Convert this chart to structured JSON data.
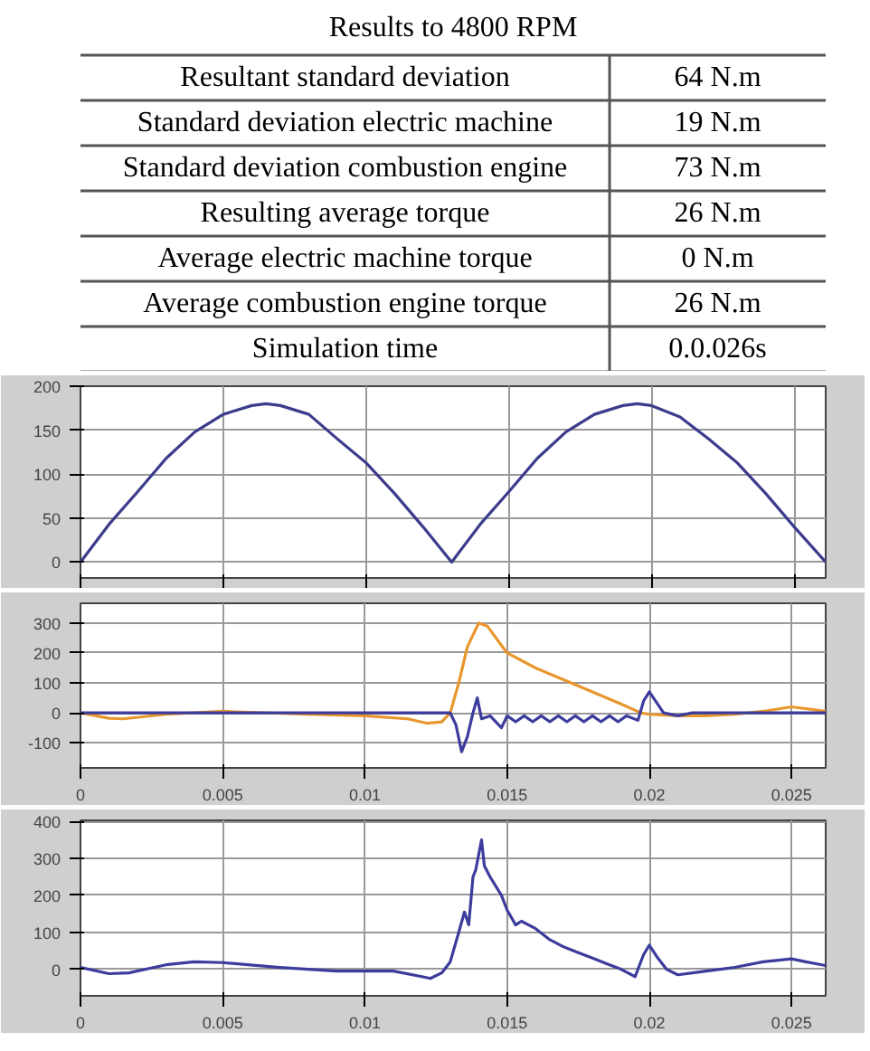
{
  "chart_data": [
    {
      "type": "other",
      "title": "Results to 4800 RPM",
      "annotations": [
        "Resultant standard deviation",
        "64 N.m",
        "Standard deviation electric machine",
        "19 N.m",
        "Standard deviation combustion engine",
        "73 N.m",
        "Resulting average torque",
        "26 N.m",
        "Average electric machine torque",
        "0 N.m",
        "Average combustion engine torque",
        "26 N.m",
        "Simulation time",
        "0.0.026s"
      ]
    },
    {
      "type": "line",
      "xlim": [
        0,
        0.0261
      ],
      "ylim": [
        -18,
        200
      ],
      "xticks": [
        0,
        0.005,
        0.01,
        0.015,
        0.02,
        0.025
      ],
      "yticks": [
        0,
        50,
        100,
        150,
        200
      ],
      "grid": true,
      "tick_labels": "y",
      "series": [
        {
          "color": "#3c3c8c",
          "x": [
            0,
            0.001,
            0.002,
            0.003,
            0.004,
            0.005,
            0.006,
            0.0065,
            0.007,
            0.008,
            0.009,
            0.01,
            0.011,
            0.012,
            0.013,
            0.014,
            0.015,
            0.016,
            0.017,
            0.018,
            0.019,
            0.0195,
            0.02,
            0.021,
            0.022,
            0.023,
            0.024,
            0.025,
            0.0261
          ],
          "values": [
            0,
            43,
            80,
            118,
            148,
            168,
            178,
            180,
            178,
            168,
            140,
            113,
            78,
            40,
            0,
            43,
            80,
            118,
            148,
            168,
            178,
            180,
            178,
            165,
            140,
            113,
            78,
            40,
            0
          ]
        }
      ]
    },
    {
      "type": "line",
      "xlim": [
        0,
        0.0262
      ],
      "ylim": [
        -184,
        366
      ],
      "xticks": [
        0,
        0.005,
        0.01,
        0.015,
        0.02,
        0.025
      ],
      "yticks": [
        -100,
        0,
        100,
        200,
        300
      ],
      "grid": true,
      "series": [
        {
          "color": "#e8962e",
          "x": [
            0,
            0.001,
            0.0015,
            0.003,
            0.005,
            0.008,
            0.01,
            0.0115,
            0.0122,
            0.0127,
            0.013,
            0.0133,
            0.0136,
            0.014,
            0.0143,
            0.015,
            0.016,
            0.017,
            0.018,
            0.019,
            0.0197,
            0.02,
            0.021,
            0.022,
            0.023,
            0.024,
            0.025,
            0.0262
          ],
          "values": [
            0,
            -18,
            -20,
            -5,
            5,
            -5,
            -10,
            -20,
            -35,
            -30,
            0,
            100,
            220,
            300,
            290,
            200,
            150,
            110,
            70,
            30,
            0,
            -5,
            -10,
            -10,
            -5,
            5,
            20,
            5
          ]
        },
        {
          "color": "#3c3c9c",
          "x": [
            0,
            0.013,
            0.0132,
            0.0134,
            0.0136,
            0.0138,
            0.01395,
            0.0141,
            0.0144,
            0.0148,
            0.015,
            0.0153,
            0.0156,
            0.0159,
            0.0162,
            0.0165,
            0.0168,
            0.0171,
            0.0174,
            0.0177,
            0.018,
            0.0183,
            0.0186,
            0.0189,
            0.0192,
            0.0196,
            0.0198,
            0.02,
            0.0205,
            0.021,
            0.0215,
            0.0262
          ],
          "values": [
            0,
            0,
            -40,
            -130,
            -80,
            0,
            50,
            -20,
            -10,
            -50,
            -10,
            -30,
            -10,
            -30,
            -10,
            -30,
            -10,
            -30,
            -10,
            -30,
            -10,
            -30,
            -10,
            -30,
            -10,
            -25,
            40,
            70,
            0,
            -10,
            0,
            0
          ]
        }
      ]
    },
    {
      "type": "line",
      "xlim": [
        0,
        0.0262
      ],
      "ylim": [
        -72,
        403
      ],
      "xticks": [
        0,
        0.005,
        0.01,
        0.015,
        0.02,
        0.025
      ],
      "yticks": [
        0,
        100,
        200,
        300,
        400
      ],
      "grid": true,
      "series": [
        {
          "color": "#3c3c9c",
          "x": [
            0,
            0.001,
            0.0017,
            0.003,
            0.004,
            0.005,
            0.007,
            0.009,
            0.011,
            0.012,
            0.0123,
            0.0127,
            0.013,
            0.0133,
            0.0135,
            0.01365,
            0.0138,
            0.0139,
            0.0141,
            0.0142,
            0.0144,
            0.0148,
            0.015,
            0.0153,
            0.0155,
            0.016,
            0.0165,
            0.017,
            0.0175,
            0.018,
            0.0185,
            0.019,
            0.0195,
            0.0198,
            0.02,
            0.0203,
            0.0206,
            0.021,
            0.022,
            0.023,
            0.024,
            0.025,
            0.0255,
            0.0262
          ],
          "values": [
            5,
            -12,
            -10,
            12,
            20,
            18,
            5,
            -5,
            -5,
            -20,
            -25,
            -10,
            20,
            100,
            155,
            120,
            250,
            270,
            350,
            280,
            250,
            200,
            160,
            120,
            130,
            110,
            80,
            60,
            45,
            30,
            15,
            0,
            -20,
            40,
            65,
            30,
            0,
            -15,
            -5,
            5,
            20,
            28,
            20,
            10
          ]
        }
      ]
    }
  ]
}
